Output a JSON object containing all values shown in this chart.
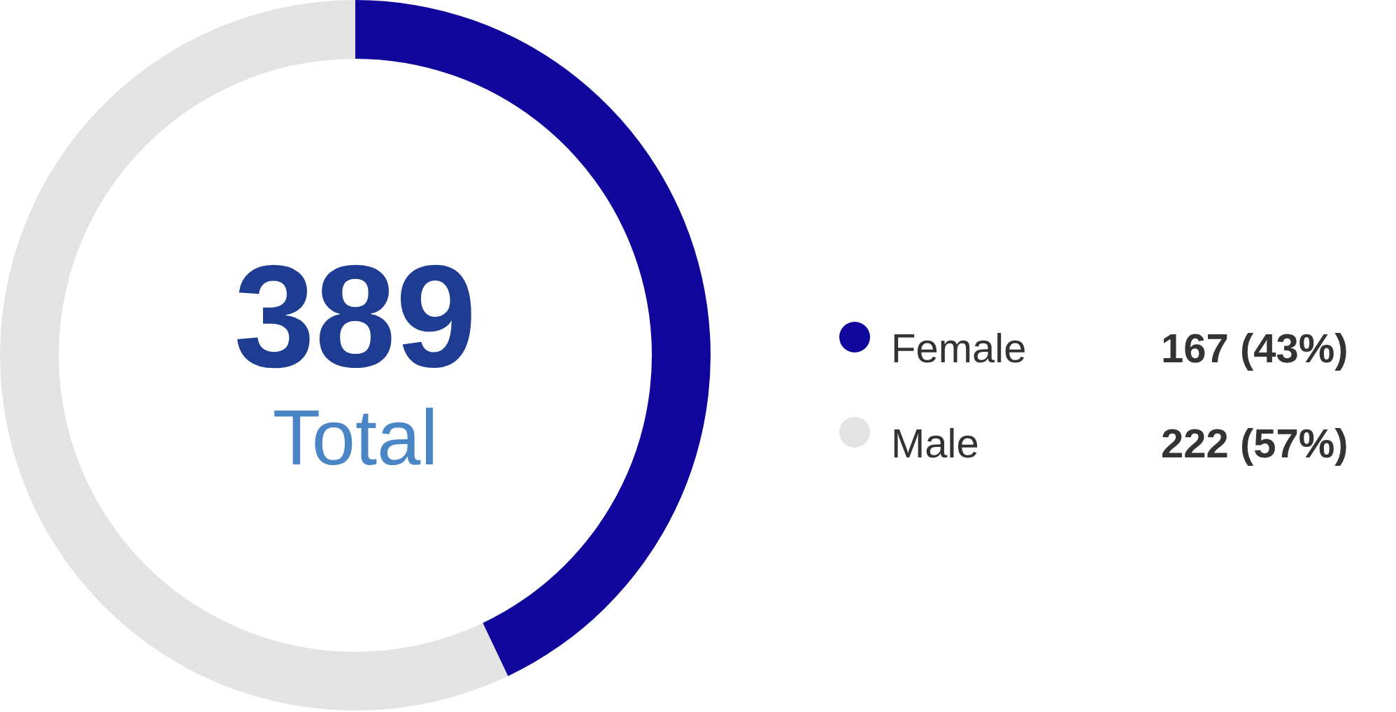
{
  "chart_data": {
    "type": "donut",
    "categories": [
      "Female",
      "Male"
    ],
    "values": [
      167,
      222
    ],
    "colors": [
      "#10069c",
      "#e3e3e3"
    ],
    "value_labels": [
      "167 (43%)",
      "222 (57%)"
    ],
    "annotations": [
      "389",
      "Total"
    ],
    "legend": "right"
  }
}
